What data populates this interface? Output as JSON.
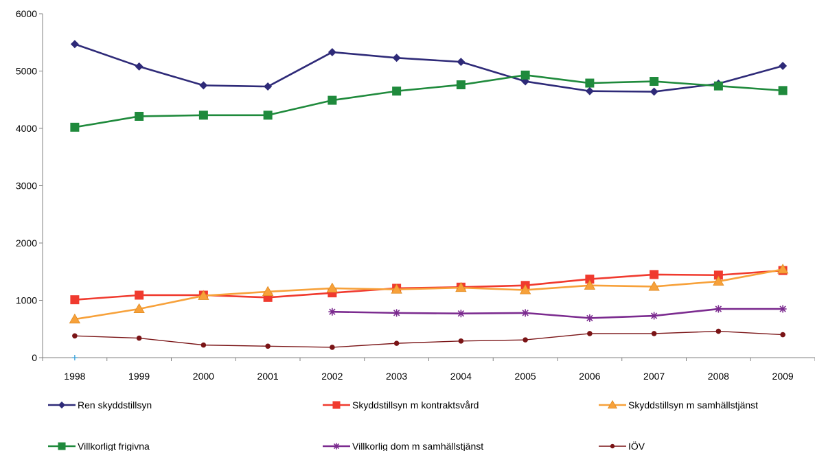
{
  "chart_data": {
    "type": "line",
    "title": "",
    "xlabel": "",
    "ylabel": "",
    "categories": [
      "1998",
      "1999",
      "2000",
      "2001",
      "2002",
      "2003",
      "2004",
      "2005",
      "2006",
      "2007",
      "2008",
      "2009"
    ],
    "ylim": [
      0,
      6000
    ],
    "yticks": [
      0,
      1000,
      2000,
      3000,
      4000,
      5000,
      6000
    ],
    "grid": false,
    "legend_position": "bottom",
    "series": [
      {
        "name": "Ren skyddstillsyn",
        "color": "#2e2a78",
        "marker": "diamond",
        "values": [
          5470,
          5080,
          4750,
          4730,
          5330,
          5230,
          5160,
          4820,
          4650,
          4640,
          4780,
          5090
        ]
      },
      {
        "name": "Skyddstillsyn m kontraktsvård",
        "color": "#f03a2e",
        "marker": "square",
        "values": [
          1010,
          1090,
          1090,
          1050,
          1130,
          1210,
          1230,
          1260,
          1370,
          1450,
          1440,
          1520
        ]
      },
      {
        "name": "Skyddstillsyn m samhällstjänst",
        "color": "#f7a13a",
        "marker": "triangle",
        "values": [
          670,
          850,
          1080,
          1150,
          1210,
          1190,
          1220,
          1180,
          1260,
          1240,
          1330,
          1540
        ]
      },
      {
        "name": "Villkorligt frigivna",
        "color": "#1f8a3c",
        "marker": "square",
        "values": [
          4020,
          4210,
          4230,
          4230,
          4490,
          4650,
          4760,
          4930,
          4790,
          4820,
          4740,
          4660
        ]
      },
      {
        "name": "Villkorlig dom m samhällstjänst",
        "color": "#7b2b8f",
        "marker": "star",
        "values": [
          null,
          null,
          null,
          null,
          800,
          780,
          770,
          780,
          690,
          730,
          850,
          850
        ]
      },
      {
        "name": "IÖV",
        "color": "#7a1416",
        "marker": "circle",
        "values": [
          380,
          340,
          220,
          200,
          180,
          250,
          290,
          310,
          420,
          420,
          460,
          400
        ]
      }
    ],
    "stray_marker": {
      "category": "1998",
      "value": 0,
      "color": "#3aa0d8"
    }
  }
}
